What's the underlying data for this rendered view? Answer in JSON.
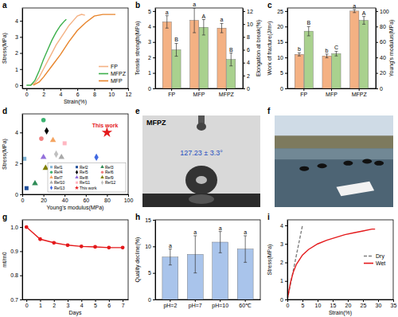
{
  "chart_data": [
    {
      "panel": "a",
      "type": "line",
      "x_label": "Strain(%)",
      "y_label": "Stress(MPa)",
      "xlim": [
        -0.5,
        12
      ],
      "ylim": [
        -0.2,
        4.8
      ],
      "xticks": [
        0,
        2,
        4,
        6,
        8,
        10,
        12
      ],
      "yticks": [
        0,
        1,
        2,
        3,
        4
      ],
      "legend": "lower right",
      "series": [
        {
          "name": "FP",
          "color": "#f4b183",
          "x": [
            0.5,
            1,
            1.5,
            2,
            2.5,
            3,
            3.5,
            4,
            4.5,
            5,
            5.5,
            6,
            6.5,
            6.9
          ],
          "values": [
            0,
            0.15,
            0.5,
            1.0,
            1.5,
            2.0,
            2.5,
            2.9,
            3.3,
            3.7,
            4.0,
            4.3,
            4.4,
            4.35
          ]
        },
        {
          "name": "MFPZ",
          "color": "#3cb04b",
          "x": [
            0,
            0.5,
            1,
            1.5,
            2,
            2.5,
            3,
            3.5,
            4,
            4.5,
            4.7
          ],
          "values": [
            0,
            0,
            0.3,
            0.9,
            1.6,
            2.2,
            2.8,
            3.3,
            3.7,
            4.0,
            4.1
          ]
        },
        {
          "name": "MFP",
          "color": "#e8842a",
          "x": [
            0.8,
            1.5,
            2,
            3,
            4,
            5,
            6,
            7,
            8,
            9,
            10,
            10.5
          ],
          "values": [
            0,
            0.2,
            0.5,
            1.2,
            1.9,
            2.7,
            3.4,
            3.9,
            4.3,
            4.4,
            4.4,
            4.4
          ]
        }
      ]
    },
    {
      "panel": "b",
      "type": "bar",
      "categories": [
        "FP",
        "MFP",
        "MFPZ"
      ],
      "ylim": [
        0,
        5.2
      ],
      "yticks": [
        0,
        1,
        2,
        3,
        4,
        5
      ],
      "y2lim": [
        0,
        12.5
      ],
      "y2ticks": [
        0,
        2,
        4,
        6,
        8,
        10,
        12
      ],
      "series": [
        {
          "name": "Tensile strength(MPa)",
          "color": "#f4b183",
          "values": [
            4.3,
            4.4,
            3.9
          ],
          "errors": [
            0.4,
            0.8,
            0.3
          ],
          "letters": [
            "a",
            "a",
            "a"
          ]
        },
        {
          "name": "Elongation at break(%)",
          "color": "#a9d18e",
          "axis": "y2",
          "values": [
            6,
            9.5,
            4.5
          ],
          "errors": [
            1,
            1.2,
            1
          ],
          "letters": [
            "B",
            "A",
            "B"
          ]
        }
      ]
    },
    {
      "panel": "c",
      "type": "bar",
      "categories": [
        "FP",
        "MFP",
        "MFPZ"
      ],
      "ylim": [
        0,
        26
      ],
      "yticks": [
        0,
        5,
        10,
        15,
        20,
        25
      ],
      "y2lim": [
        0,
        104
      ],
      "y2ticks": [
        0,
        20,
        40,
        60,
        80,
        100
      ],
      "series": [
        {
          "name": "Work of fracture(J/m²)",
          "color": "#f4b183",
          "values": [
            11,
            10.5,
            25
          ],
          "errors": [
            0.5,
            0.6,
            0.5
          ],
          "letters": [
            "b",
            "b",
            "a"
          ]
        },
        {
          "name": "Young's modulus(MPa)",
          "color": "#a9d18e",
          "axis": "y2",
          "values": [
            74,
            45,
            88
          ],
          "errors": [
            6,
            3,
            5
          ],
          "letters": [
            "B",
            "C",
            "A"
          ]
        }
      ]
    },
    {
      "panel": "d",
      "type": "scatter",
      "x_label": "Young's modulus(MPa)",
      "y_label": "Stress(MPa)",
      "xlim": [
        0,
        100
      ],
      "ylim": [
        0,
        5.2
      ],
      "xticks": [
        0,
        20,
        40,
        60,
        80,
        100
      ],
      "yticks": [
        0,
        2,
        4
      ],
      "legend": "lower right",
      "annotation": "This work",
      "series": [
        {
          "name": "Ref1",
          "color": "#7fb3d5",
          "marker": "square",
          "x": [
            2
          ],
          "values": [
            2.3
          ]
        },
        {
          "name": "Ref2",
          "color": "#1f4e9a",
          "marker": "square",
          "x": [
            4
          ],
          "values": [
            0.4
          ]
        },
        {
          "name": "Ref3",
          "color": "#2e8b57",
          "marker": "triangle",
          "x": [
            12
          ],
          "values": [
            0.7
          ]
        },
        {
          "name": "Ref4",
          "color": "#3cb371",
          "marker": "circle",
          "x": [
            20
          ],
          "values": [
            4.8
          ]
        },
        {
          "name": "Ref5",
          "color": "#000000",
          "marker": "diamond",
          "x": [
            23
          ],
          "values": [
            4.1
          ]
        },
        {
          "name": "Ref6",
          "color": "#f08080",
          "marker": "circle",
          "x": [
            18
          ],
          "values": [
            3.6
          ]
        },
        {
          "name": "Ref7",
          "color": "#f4a460",
          "marker": "triangle",
          "x": [
            29
          ],
          "values": [
            3.5
          ]
        },
        {
          "name": "Ref8",
          "color": "#9370db",
          "marker": "triangle",
          "x": [
            20
          ],
          "values": [
            2.4
          ]
        },
        {
          "name": "Ref9",
          "color": "#808000",
          "marker": "triangle",
          "x": [
            22
          ],
          "values": [
            1.7
          ]
        },
        {
          "name": "Ref10",
          "color": "#a9a9a9",
          "marker": "triangle",
          "x": [
            37
          ],
          "values": [
            2.4
          ]
        },
        {
          "name": "Ref11",
          "color": "#ffb6c1",
          "marker": "square",
          "x": [
            40
          ],
          "values": [
            3.3
          ]
        },
        {
          "name": "Ref12",
          "color": "#c0c0c0",
          "marker": "diamond",
          "x": [
            32
          ],
          "values": [
            2.6
          ]
        },
        {
          "name": "Ref13",
          "color": "#4169e1",
          "marker": "diamond",
          "x": [
            70
          ],
          "values": [
            2.4
          ]
        },
        {
          "name": "This work",
          "color": "#e41a1c",
          "marker": "star",
          "x": [
            80
          ],
          "values": [
            4.0
          ]
        }
      ]
    },
    {
      "panel": "e",
      "type": "image",
      "title": "MFPZ",
      "annotation": "127.23 ± 3.3°"
    },
    {
      "panel": "f",
      "type": "image"
    },
    {
      "panel": "g",
      "type": "line",
      "x_label": "Days",
      "y_label": "mt/m0",
      "xlim": [
        -0.3,
        7.4
      ],
      "ylim": [
        0.7,
        1.03
      ],
      "xticks": [
        0,
        1,
        2,
        3,
        4,
        5,
        6,
        7
      ],
      "yticks": [
        0.7,
        0.8,
        0.9,
        {
          "value": 1,
          "label": "1.0"
        }
      ],
      "color": "#e41a1c",
      "marker": "circle",
      "x": [
        0,
        1,
        2,
        3,
        4,
        5,
        6,
        7
      ],
      "values": [
        1.0,
        0.95,
        0.935,
        0.925,
        0.92,
        0.918,
        0.915,
        0.915
      ]
    },
    {
      "panel": "h",
      "type": "bar",
      "y_label": "Quality decline(%)",
      "categories": [
        "pH=2",
        "pH=7",
        "pH=10",
        "60℃"
      ],
      "ylim": [
        0,
        15
      ],
      "yticks": [
        0,
        5,
        10,
        15
      ],
      "color": "#a9c4eb",
      "values": [
        8,
        8.5,
        10.8,
        9.5
      ],
      "errors": [
        1.5,
        3.5,
        2,
        2.5
      ],
      "letters": [
        "a",
        "a",
        "a",
        "a"
      ]
    },
    {
      "panel": "i",
      "type": "line",
      "x_label": "Strain(%)",
      "y_label": "Stress(MPa)",
      "xlim": [
        0,
        35
      ],
      "ylim": [
        0,
        4.3
      ],
      "xticks": [
        0,
        5,
        10,
        15,
        20,
        25,
        30,
        35
      ],
      "yticks": [
        0,
        1,
        2,
        3,
        4
      ],
      "legend": "center right",
      "series": [
        {
          "name": "Dry",
          "color": "#7f7f7f",
          "line_style": "dashed",
          "x": [
            0,
            1,
            2,
            3,
            4,
            5
          ],
          "values": [
            0,
            0.8,
            1.6,
            2.4,
            3.2,
            4.0
          ]
        },
        {
          "name": "Wet",
          "color": "#e41a1c",
          "x": [
            0,
            1,
            2,
            3,
            5,
            7,
            10,
            13,
            16,
            19,
            22,
            25,
            28,
            29
          ],
          "values": [
            0,
            0.9,
            1.5,
            1.9,
            2.4,
            2.7,
            3.0,
            3.2,
            3.35,
            3.5,
            3.6,
            3.7,
            3.8,
            3.8
          ]
        }
      ]
    }
  ]
}
